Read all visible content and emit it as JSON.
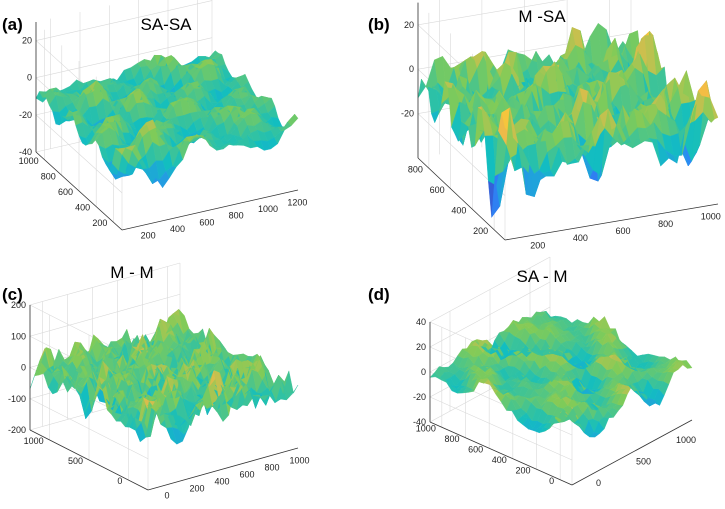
{
  "chart_data": [
    {
      "type": "surface",
      "panel_label": "(a)",
      "title": "SA-SA",
      "xticks": [
        "200",
        "400",
        "600",
        "800",
        "1000",
        "1200"
      ],
      "yticks": [
        "200",
        "400",
        "600",
        "800",
        "1000"
      ],
      "zticks": [
        "20",
        "0",
        "-20",
        "-40"
      ],
      "zlim": [
        -40,
        30
      ],
      "seed": 11,
      "roughness": 0.45,
      "amplitude": 14,
      "offset": -8
    },
    {
      "type": "surface",
      "panel_label": "(b)",
      "title": "M -SA",
      "xticks": [
        "200",
        "400",
        "600",
        "800",
        "1000"
      ],
      "yticks": [
        "200",
        "400",
        "600",
        "800"
      ],
      "zticks": [
        "20",
        "0",
        "-20"
      ],
      "zlim": [
        -40,
        30
      ],
      "seed": 23,
      "roughness": 0.75,
      "amplitude": 18,
      "offset": -6
    },
    {
      "type": "surface",
      "panel_label": "(c)",
      "title": "M - M",
      "xticks": [
        "0",
        "200",
        "400",
        "600",
        "800",
        "1000"
      ],
      "yticks": [
        "0",
        "500",
        "1000"
      ],
      "zticks": [
        "200",
        "100",
        "0",
        "-100",
        "-200"
      ],
      "zlim": [
        -200,
        200
      ],
      "seed": 37,
      "roughness": 1.0,
      "amplitude": 90,
      "offset": 0
    },
    {
      "type": "surface",
      "panel_label": "(d)",
      "title": "SA - M",
      "xticks": [
        "0",
        "500",
        "1000"
      ],
      "yticks": [
        "0",
        "200",
        "400",
        "600",
        "800",
        "1000"
      ],
      "zticks": [
        "40",
        "20",
        "0",
        "-20",
        "-40"
      ],
      "zlim": [
        -40,
        40
      ],
      "seed": 53,
      "roughness": 0.55,
      "amplitude": 16,
      "offset": 0
    }
  ],
  "colormap": [
    "#3e26a8",
    "#2e87f7",
    "#12bec0",
    "#80cb58",
    "#f4b948",
    "#f8fa0d"
  ]
}
